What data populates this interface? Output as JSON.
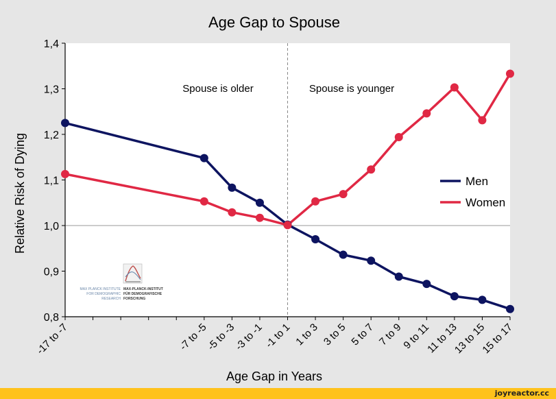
{
  "chart_data": {
    "type": "line",
    "title": "Age Gap to Spouse",
    "xlabel": "Age Gap in Years",
    "ylabel": "Relative Risk of Dying",
    "categories": [
      "-17 to -7",
      "",
      "",
      "",
      "",
      "-7 to -5",
      "-5 to -3",
      "-3 to -1",
      "-1 to 1",
      "1 to 3",
      "3 to 5",
      "5 to 7",
      "7 to 9",
      "9 to 11",
      "11 to 13",
      "13 to 15",
      "15 to 17"
    ],
    "ylim": [
      0.8,
      1.4
    ],
    "yticks": [
      0.8,
      0.9,
      1.0,
      1.1,
      1.2,
      1.3,
      1.4
    ],
    "ytick_labels": [
      "0,8",
      "0,9",
      "1,0",
      "1,1",
      "1,2",
      "1,3",
      "1,4"
    ],
    "series": [
      {
        "name": "Men",
        "color": "#0d1460",
        "values": [
          1.225,
          null,
          null,
          null,
          null,
          1.148,
          1.083,
          1.05,
          1.002,
          0.97,
          0.936,
          0.923,
          0.888,
          0.872,
          0.845,
          0.837,
          0.817
        ]
      },
      {
        "name": "Women",
        "color": "#e02844",
        "values": [
          1.113,
          null,
          null,
          null,
          null,
          1.053,
          1.029,
          1.017,
          1.001,
          1.053,
          1.069,
          1.123,
          1.194,
          1.246,
          1.303,
          1.231,
          1.333
        ]
      }
    ],
    "reference_line": 1.0,
    "divider_category": "-1 to 1",
    "annotations": [
      "Spouse is older",
      "Spouse is younger"
    ],
    "legend": "right",
    "grid": false
  },
  "logo": {
    "left_text": [
      "MAX PLANCK INSTITUTE",
      "FOR DEMOGRAPHIC",
      "RESEARCH"
    ],
    "right_text": [
      "MAX-PLANCK-INSTITUT",
      "FÜR DEMOGRAFISCHE",
      "FORSCHUNG"
    ]
  },
  "footer": {
    "site": "joyreactor.cc",
    "bar_color": "#ffc21c"
  }
}
